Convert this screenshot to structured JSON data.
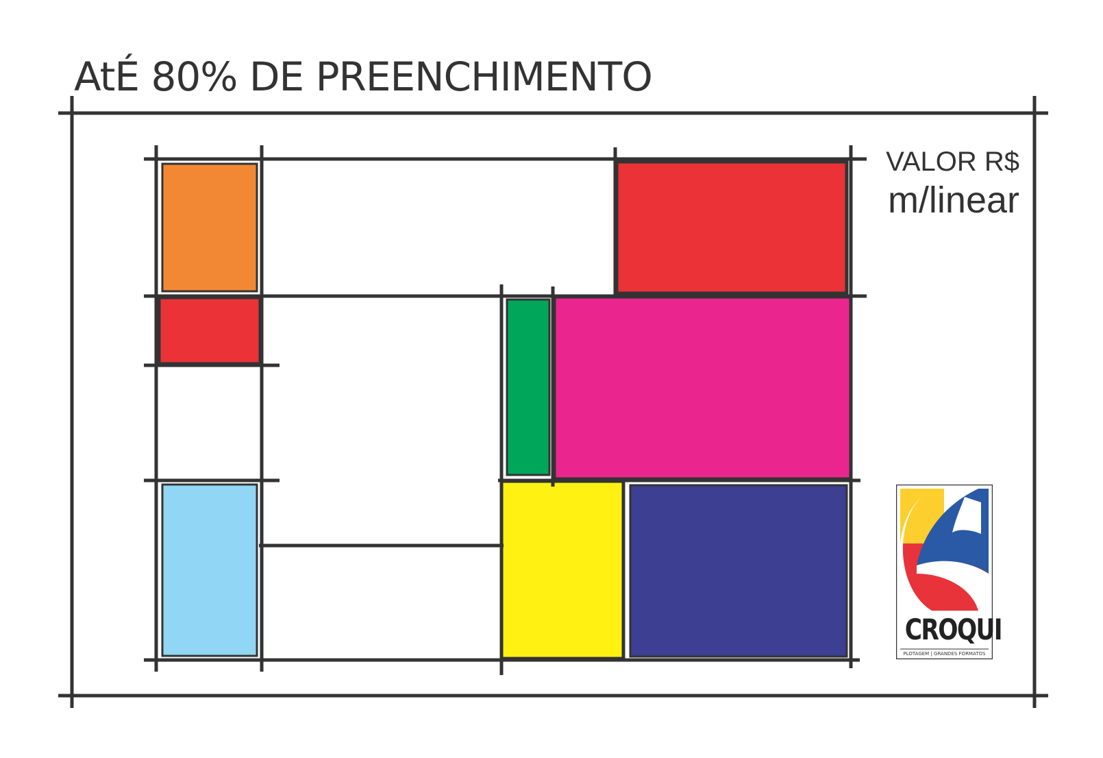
{
  "heading": "AtÉ 80% DE PREENCHIMENTO",
  "price": {
    "line1": "VALOR R$",
    "line2": "m/linear"
  },
  "colors": {
    "line": "#333333",
    "orange": "#F38834",
    "red": "#EA3237",
    "green": "#00A65A",
    "magenta": "#EA268E",
    "light_blue": "#91D6F4",
    "yellow": "#FFF212",
    "navy": "#3D3F93"
  },
  "logo": {
    "name": "CROQUI",
    "tagline": "PLOTAGEM | GRANDES FORMATOS",
    "colors": {
      "yellow": "#FDCF2E",
      "blue": "#2A59A6",
      "red": "#E8333A"
    }
  }
}
